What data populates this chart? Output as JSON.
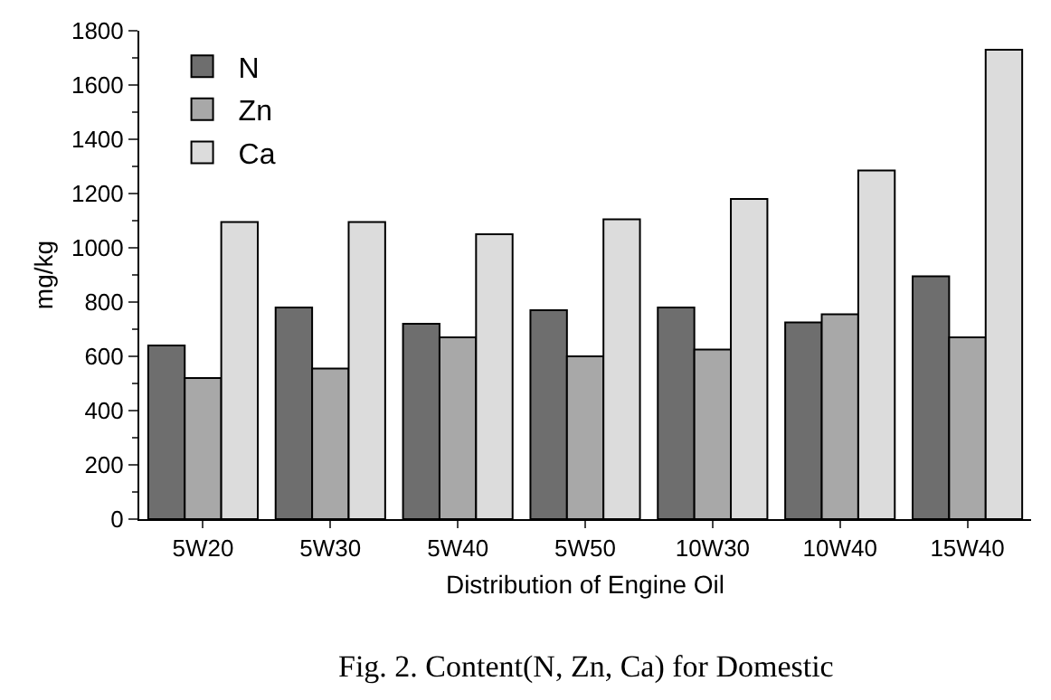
{
  "chart_data": {
    "type": "bar",
    "xlabel": "Distribution of Engine Oil",
    "ylabel": "mg/kg",
    "categories": [
      "5W20",
      "5W30",
      "5W40",
      "5W50",
      "10W30",
      "10W40",
      "15W40"
    ],
    "series": [
      {
        "name": "N",
        "color": "#6e6e6e",
        "values": [
          640,
          780,
          720,
          770,
          780,
          725,
          895
        ]
      },
      {
        "name": "Zn",
        "color": "#a8a8a8",
        "values": [
          520,
          555,
          670,
          600,
          625,
          755,
          670
        ]
      },
      {
        "name": "Ca",
        "color": "#dcdcdc",
        "values": [
          1095,
          1095,
          1050,
          1105,
          1180,
          1285,
          1730
        ]
      }
    ],
    "ylim": [
      0,
      1800
    ],
    "yticks": [
      0,
      200,
      400,
      600,
      800,
      1000,
      1200,
      1400,
      1600,
      1800
    ],
    "grid": false,
    "legend": "top left",
    "annotations": [
      "Fig. 2. Content(N, Zn, Ca) for Domestic"
    ]
  }
}
